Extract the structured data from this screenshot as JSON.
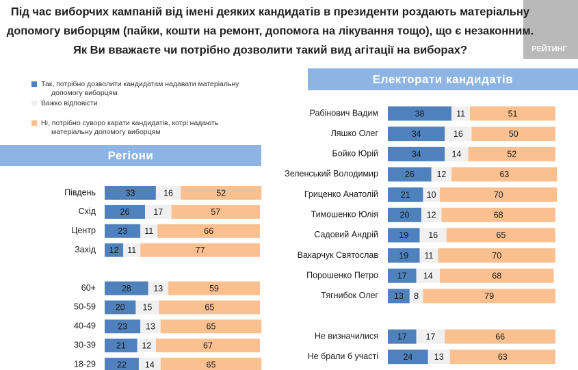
{
  "title": [
    "Під час виборчих кампаній від імені деяких кандидатів в президенти роздають матеріальну",
    "допомогу виборцям (пайки, кошти на ремонт, допомога на лікування тощо), що є незаконним.",
    "Як Ви вважаєте чи потрібно дозволити такий вид агітації на виборах?"
  ],
  "logo": "РЕЙТИНГ",
  "chart_data": [
    {
      "type": "bar",
      "orientation": "horizontal",
      "stacked": true,
      "title": "Регіони",
      "categories": [
        "Південь",
        "Схід",
        "Центр",
        "Захід",
        null,
        "60+",
        "50-59",
        "40-49",
        "30-39",
        "18-29"
      ],
      "series": [
        {
          "name": "Так, потрібно дозволити кандидатам надавати матеріальну допомогу виборцям",
          "color": "#4f81bd",
          "values": [
            33,
            26,
            23,
            12,
            null,
            28,
            20,
            23,
            21,
            22
          ]
        },
        {
          "name": "Важко відповісти",
          "color": "#f0f0f0",
          "values": [
            16,
            17,
            11,
            11,
            null,
            13,
            15,
            13,
            12,
            14
          ]
        },
        {
          "name": "Ні, потрібно суворо карати кандидатів, котрі надають матеріальну допомогу виборцям",
          "color": "#fac090",
          "values": [
            52,
            57,
            66,
            77,
            null,
            59,
            65,
            65,
            67,
            65
          ]
        }
      ]
    },
    {
      "type": "bar",
      "orientation": "horizontal",
      "stacked": true,
      "title": "Електорати кандидатів",
      "categories": [
        "Рабінович Вадим",
        "Ляшко Олег",
        "Бойко Юрій",
        "Зеленський Володимир",
        "Гриценко Анатолій",
        "Тимошенко Юлія",
        "Садовий Андрій",
        "Вакарчук Святослав",
        "Порошенко Петро",
        "Тягнибок Олег",
        null,
        "Не визначилися",
        "Не брали б участі"
      ],
      "series": [
        {
          "color": "#4f81bd",
          "values": [
            38,
            34,
            34,
            26,
            21,
            20,
            19,
            19,
            17,
            13,
            null,
            17,
            24
          ]
        },
        {
          "color": "#f0f0f0",
          "values": [
            11,
            16,
            14,
            12,
            10,
            12,
            16,
            11,
            14,
            8,
            null,
            17,
            13
          ]
        },
        {
          "color": "#fac090",
          "values": [
            51,
            50,
            52,
            63,
            70,
            68,
            65,
            70,
            68,
            79,
            null,
            66,
            63
          ]
        }
      ]
    }
  ]
}
